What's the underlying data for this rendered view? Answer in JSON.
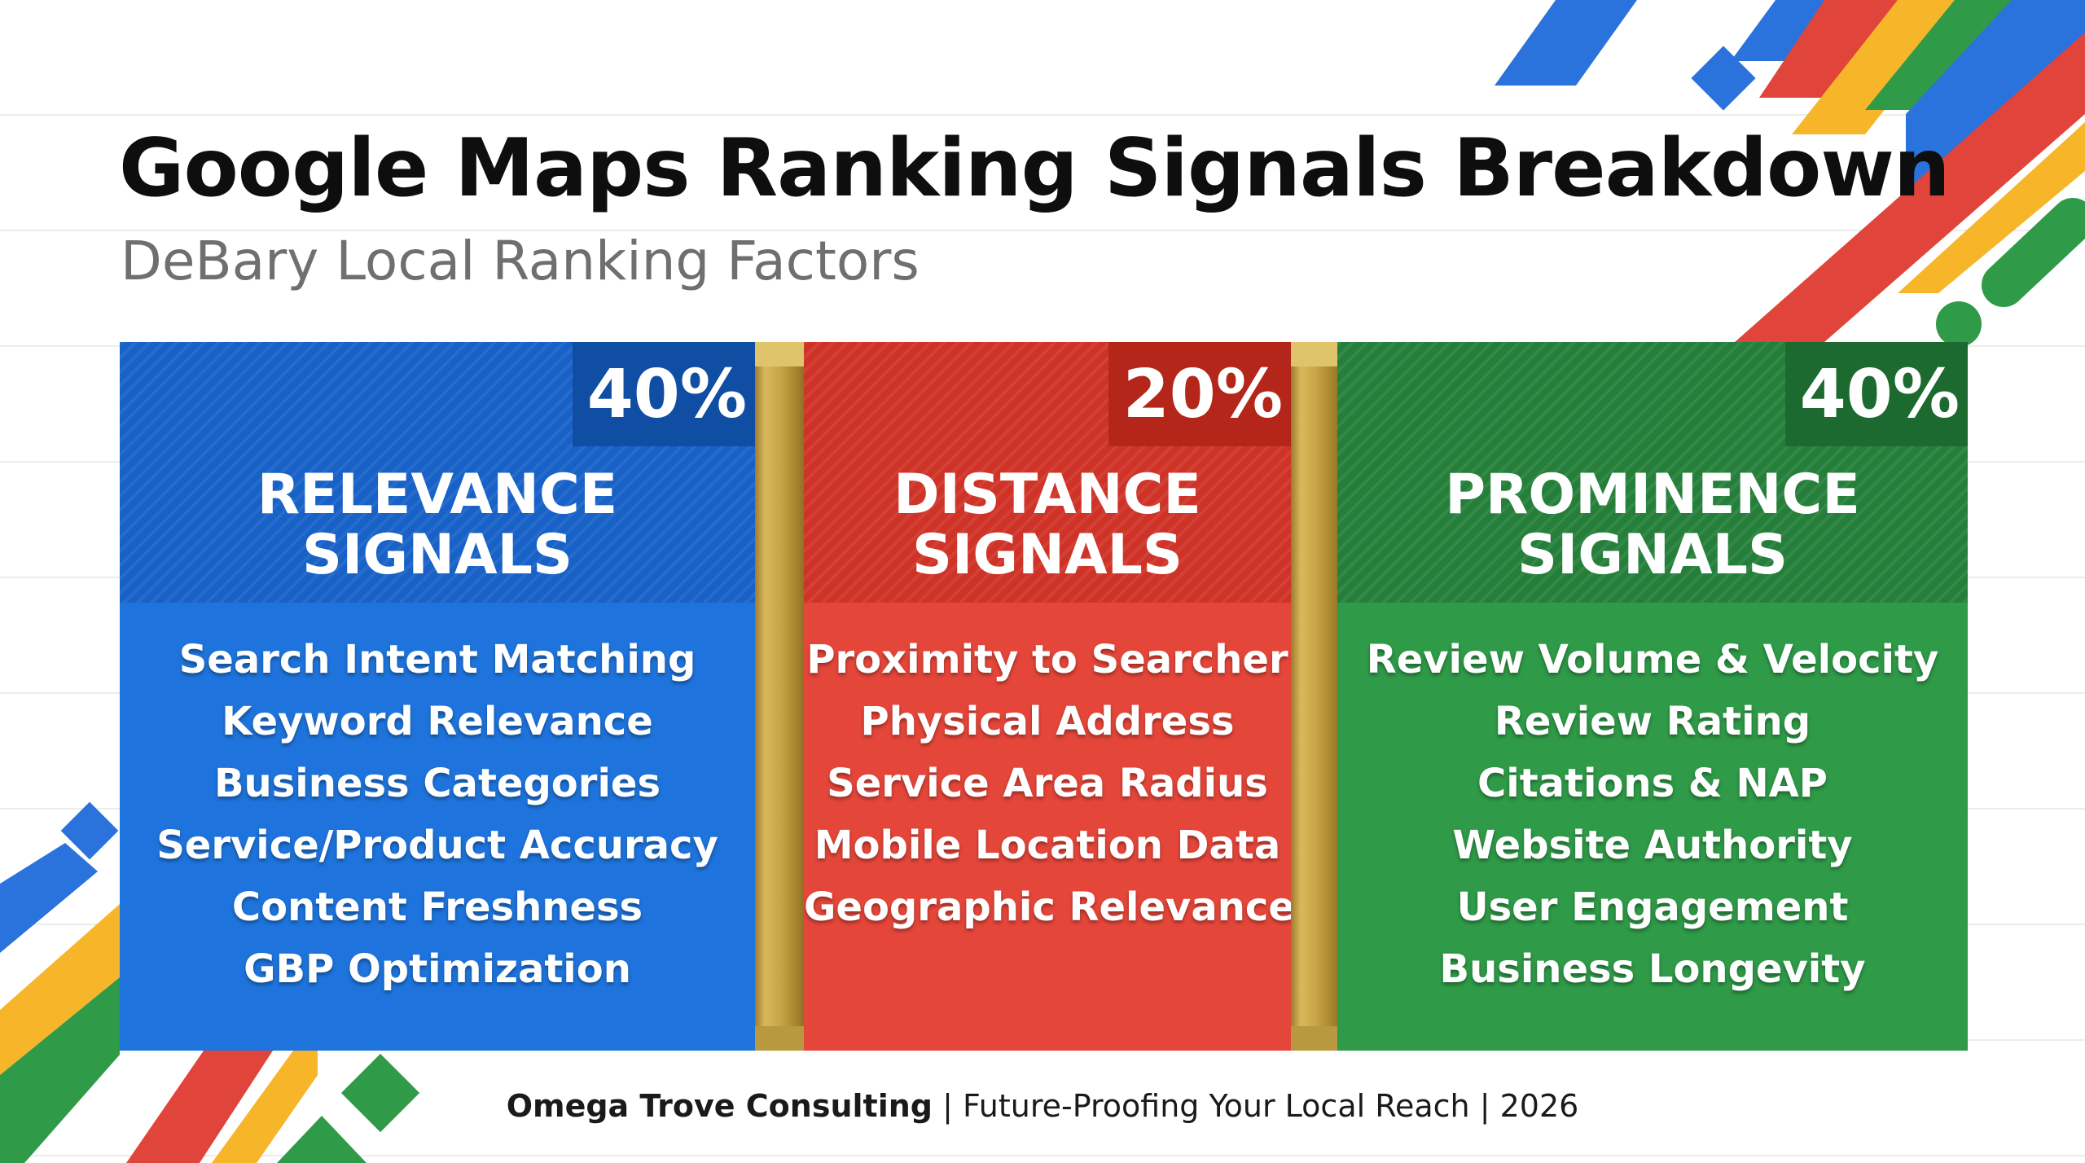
{
  "title": "Google Maps Ranking Signals Breakdown",
  "subtitle": "DeBary Local Ranking Factors",
  "colors": {
    "blue": "#1e74dc",
    "red": "#e5463a",
    "green": "#2f9a48",
    "yellow": "#f7b52a",
    "gold": "#c9a546"
  },
  "panels": [
    {
      "percent": "40%",
      "heading_line1": "RELEVANCE",
      "heading_line2": "SIGNALS",
      "items": [
        "Search Intent Matching",
        "Keyword Relevance",
        "Business Categories",
        "Service/Product Accuracy",
        "Content Freshness",
        "GBP Optimization"
      ]
    },
    {
      "percent": "20%",
      "heading_line1": "DISTANCE",
      "heading_line2": "SIGNALS",
      "items": [
        "Proximity to Searcher",
        "Physical Address",
        "Service Area Radius",
        "Mobile Location Data",
        "Geographic Relevance"
      ]
    },
    {
      "percent": "40%",
      "heading_line1": "PROMINENCE",
      "heading_line2": "SIGNALS",
      "items": [
        "Review Volume & Velocity",
        "Review Rating",
        "Citations & NAP",
        "Website Authority",
        "User Engagement",
        "Business Longevity"
      ]
    }
  ],
  "footer": {
    "brand": "Omega Trove Consulting",
    "separator": "|",
    "tagline": "Future-Proofing Your Local Reach",
    "year": "2026"
  }
}
